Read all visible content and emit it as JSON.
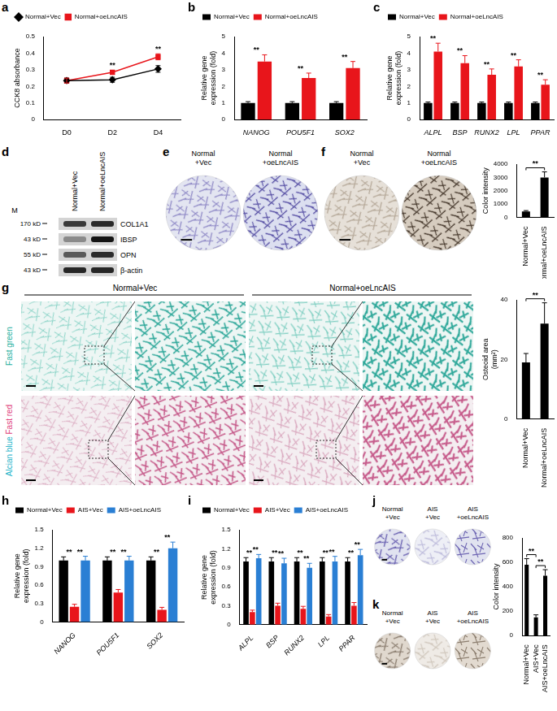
{
  "chart_data": [
    {
      "panel": "a",
      "type": "line",
      "categories": [
        "D0",
        "D2",
        "D4"
      ],
      "y_label": "CCK8 absorbance",
      "ylim": [
        0,
        0.5
      ],
      "yticks": [
        0,
        0.1,
        0.2,
        0.3,
        0.4,
        0.5
      ],
      "grid": false,
      "legend": "top",
      "series": [
        {
          "name": "Normal+Vec",
          "color": "#000000",
          "marker": "diamond",
          "values": [
            0.235,
            0.24,
            0.305
          ],
          "errors": [
            0.015,
            0.015,
            0.02
          ]
        },
        {
          "name": "Normal+oeLncAIS",
          "color": "#e8151b",
          "marker": "square",
          "values": [
            0.235,
            0.285,
            0.378
          ],
          "errors": [
            0.015,
            0.012,
            0.018
          ]
        }
      ],
      "annotations": [
        {
          "text": "**",
          "categories": [
            "D2"
          ]
        },
        {
          "text": "**",
          "categories": [
            "D4"
          ]
        }
      ]
    },
    {
      "panel": "b",
      "type": "bar",
      "categories": [
        "NANOG",
        "POU5F1",
        "SOX2"
      ],
      "y_label": [
        "Relative gene",
        "expression (fold)"
      ],
      "ylim": [
        0,
        5
      ],
      "yticks": [
        0,
        1,
        2,
        3,
        4,
        5
      ],
      "grid": false,
      "legend": "top",
      "series": [
        {
          "name": "Normal+Vec",
          "color": "#000000",
          "values": [
            1,
            1,
            1
          ],
          "errors": [
            0.08,
            0.08,
            0.08
          ]
        },
        {
          "name": "Normal+oeLncAIS",
          "color": "#e8151b",
          "values": [
            3.5,
            2.5,
            3.1
          ],
          "errors": [
            0.4,
            0.3,
            0.4
          ]
        }
      ],
      "annotations": [
        {
          "text": "**",
          "categories": [
            "NANOG"
          ]
        },
        {
          "text": "**",
          "categories": [
            "POU5F1"
          ]
        },
        {
          "text": "**",
          "categories": [
            "SOX2"
          ]
        }
      ]
    },
    {
      "panel": "c",
      "type": "bar",
      "categories": [
        "ALPL",
        "BSP",
        "RUNX2",
        "LPL",
        "PPAR"
      ],
      "y_label": [
        "Relative gene",
        "expression (fold)"
      ],
      "ylim": [
        0,
        5
      ],
      "yticks": [
        0,
        1,
        2,
        3,
        4,
        5
      ],
      "grid": false,
      "legend": "top",
      "series": [
        {
          "name": "Normal+Vec",
          "color": "#000000",
          "values": [
            1,
            1,
            1,
            1,
            1
          ],
          "errors": [
            0.06,
            0.06,
            0.06,
            0.06,
            0.06
          ]
        },
        {
          "name": "Normal+oeLncAIS",
          "color": "#e8151b",
          "values": [
            4.1,
            3.4,
            2.7,
            3.2,
            2.1
          ],
          "errors": [
            0.5,
            0.45,
            0.35,
            0.4,
            0.3
          ]
        }
      ],
      "annotations": [
        {
          "text": "**",
          "categories": [
            "ALPL"
          ]
        },
        {
          "text": "**",
          "categories": [
            "BSP"
          ]
        },
        {
          "text": "**",
          "categories": [
            "RUNX2"
          ]
        },
        {
          "text": "**",
          "categories": [
            "LPL"
          ]
        },
        {
          "text": "**",
          "categories": [
            "PPAR"
          ]
        }
      ]
    },
    {
      "panel": "f",
      "type": "bar",
      "categories": [
        "Normal+Vec",
        "Normal+oeLncAIS"
      ],
      "values": [
        450,
        3000
      ],
      "errors": [
        60,
        420
      ],
      "color": "#000000",
      "y_label": "Color intensity",
      "ylim": [
        0,
        4000
      ],
      "yticks": [
        0,
        1000,
        2000,
        3000,
        4000
      ],
      "grid": false,
      "annotations": [
        {
          "text": "**",
          "categories": [
            "Normal+Vec",
            "Normal+oeLncAIS"
          ]
        }
      ]
    },
    {
      "panel": "g",
      "type": "bar",
      "categories": [
        "Normal+Vec",
        "Normal+oeLncAIS"
      ],
      "values": [
        19,
        32
      ],
      "errors": [
        3,
        7
      ],
      "color": "#000000",
      "y_label": [
        "Osteoid area",
        "(mm²)"
      ],
      "ylim": [
        0,
        40
      ],
      "yticks": [
        0,
        20,
        40
      ],
      "grid": false,
      "annotations": [
        {
          "text": "**",
          "categories": [
            "Normal+Vec",
            "Normal+oeLncAIS"
          ]
        }
      ]
    },
    {
      "panel": "h",
      "type": "bar",
      "categories": [
        "NANOG",
        "POU5F1",
        "SOX2"
      ],
      "y_label": [
        "Relative gene",
        "expression (fold)"
      ],
      "ylim": [
        0,
        1.5
      ],
      "yticks": [
        0,
        0.3,
        0.6,
        0.9,
        1.2,
        1.5
      ],
      "grid": false,
      "legend": "top",
      "series": [
        {
          "name": "Normal+Vec",
          "color": "#000000",
          "values": [
            1,
            1,
            1
          ],
          "errors": [
            0.06,
            0.06,
            0.06
          ]
        },
        {
          "name": "AIS+Vec",
          "color": "#e8151b",
          "values": [
            0.25,
            0.48,
            0.2
          ],
          "errors": [
            0.04,
            0.05,
            0.04
          ]
        },
        {
          "name": "AIS+oeLncAIS",
          "color": "#2a7fd4",
          "values": [
            1.0,
            1.0,
            1.2
          ],
          "errors": [
            0.07,
            0.07,
            0.1
          ]
        }
      ],
      "annotations": [
        {
          "text": "**",
          "categories": [
            "NANOG"
          ],
          "series": [
            "Normal+Vec",
            "AIS+Vec"
          ]
        },
        {
          "text": "**",
          "categories": [
            "NANOG"
          ],
          "series": [
            "AIS+Vec",
            "AIS+oeLncAIS"
          ]
        },
        {
          "text": "**",
          "categories": [
            "POU5F1"
          ],
          "series": [
            "Normal+Vec",
            "AIS+Vec"
          ]
        },
        {
          "text": "**",
          "categories": [
            "POU5F1"
          ],
          "series": [
            "AIS+Vec",
            "AIS+oeLncAIS"
          ]
        },
        {
          "text": "**",
          "categories": [
            "SOX2"
          ],
          "series": [
            "Normal+Vec",
            "AIS+Vec"
          ]
        },
        {
          "text": "**",
          "categories": [
            "SOX2"
          ],
          "series": [
            "AIS+Vec",
            "AIS+oeLncAIS"
          ]
        }
      ]
    },
    {
      "panel": "i",
      "type": "bar",
      "categories": [
        "ALPL",
        "BSP",
        "RUNX2",
        "LPL",
        "PPAR"
      ],
      "y_label": [
        "Relative gene",
        "expression (fold)"
      ],
      "ylim": [
        0,
        1.5
      ],
      "yticks": [
        0,
        0.3,
        0.6,
        0.9,
        1.2,
        1.5
      ],
      "grid": false,
      "legend": "top",
      "series": [
        {
          "name": "Normal+Vec",
          "color": "#000000",
          "values": [
            1,
            1,
            1,
            1,
            1
          ],
          "errors": [
            0.06,
            0.06,
            0.06,
            0.06,
            0.06
          ]
        },
        {
          "name": "AIS+Vec",
          "color": "#e8151b",
          "values": [
            0.2,
            0.3,
            0.25,
            0.13,
            0.3
          ],
          "errors": [
            0.03,
            0.04,
            0.04,
            0.03,
            0.05
          ]
        },
        {
          "name": "AIS+oeLncAIS",
          "color": "#2a7fd4",
          "values": [
            1.05,
            0.97,
            0.9,
            1.0,
            1.1
          ],
          "errors": [
            0.06,
            0.08,
            0.07,
            0.08,
            0.09
          ]
        }
      ],
      "annotations": [
        {
          "text": "**",
          "categories": [
            "ALPL"
          ],
          "series": [
            "Normal+Vec",
            "AIS+Vec"
          ]
        },
        {
          "text": "**",
          "categories": [
            "ALPL"
          ],
          "series": [
            "AIS+Vec",
            "AIS+oeLncAIS"
          ]
        },
        {
          "text": "**",
          "categories": [
            "BSP"
          ],
          "series": [
            "Normal+Vec",
            "AIS+Vec"
          ]
        },
        {
          "text": "**",
          "categories": [
            "BSP"
          ],
          "series": [
            "AIS+Vec",
            "AIS+oeLncAIS"
          ]
        },
        {
          "text": "**",
          "categories": [
            "RUNX2"
          ],
          "series": [
            "Normal+Vec",
            "AIS+Vec"
          ]
        },
        {
          "text": "**",
          "categories": [
            "RUNX2"
          ],
          "series": [
            "AIS+Vec",
            "AIS+oeLncAIS"
          ]
        },
        {
          "text": "**",
          "categories": [
            "LPL"
          ],
          "series": [
            "Normal+Vec",
            "AIS+Vec"
          ]
        },
        {
          "text": "**",
          "categories": [
            "LPL"
          ],
          "series": [
            "AIS+Vec",
            "AIS+oeLncAIS"
          ]
        },
        {
          "text": "**",
          "categories": [
            "PPAR"
          ],
          "series": [
            "Normal+Vec",
            "AIS+Vec"
          ]
        },
        {
          "text": "**",
          "categories": [
            "PPAR"
          ],
          "series": [
            "AIS+Vec",
            "AIS+oeLncAIS"
          ]
        }
      ]
    },
    {
      "panel": "k",
      "type": "bar",
      "categories": [
        "Normal+Vec",
        "AIS+Vec",
        "AIS+oeLncAIS"
      ],
      "values": [
        580,
        150,
        490
      ],
      "errors": [
        50,
        20,
        50
      ],
      "color": "#000000",
      "y_label": "Color intensity",
      "ylim": [
        0,
        800
      ],
      "yticks": [
        0,
        200,
        400,
        600,
        800
      ],
      "grid": false,
      "annotations": [
        {
          "text": "**",
          "categories": [
            "Normal+Vec",
            "AIS+Vec"
          ]
        },
        {
          "text": "**",
          "categories": [
            "AIS+Vec",
            "AIS+oeLncAIS"
          ]
        }
      ]
    }
  ],
  "blot": {
    "panel": "d",
    "marker": "M",
    "lanes": [
      "Normal+Vec",
      "Normal+oeLncAIS"
    ],
    "rows": [
      {
        "size": "170 kD",
        "protein": "COL1A1"
      },
      {
        "size": "43 kD",
        "protein": "IBSP"
      },
      {
        "size": "55 kD",
        "protein": "OPN"
      },
      {
        "size": "43 kD",
        "protein": "β-actin"
      }
    ]
  },
  "micrographs": [
    {
      "panel": "e",
      "labels": [
        [
          "Normal",
          "+Vec"
        ],
        [
          "Normal",
          "+oeLncAIS"
        ]
      ]
    },
    {
      "panel": "f",
      "labels": [
        [
          "Normal",
          "+Vec"
        ],
        [
          "Normal",
          "+oeLncAIS"
        ]
      ]
    },
    {
      "panel": "g",
      "columns": [
        "Normal+Vec",
        "Normal+oeLncAIS"
      ],
      "rows": [
        {
          "texts": [
            "Fast green"
          ],
          "colors": [
            "#26b0a0"
          ]
        },
        {
          "texts": [
            "Alcian blue",
            "Fast red"
          ],
          "colors": [
            "#22b3c8",
            "#e0407a"
          ]
        }
      ]
    },
    {
      "panel": "j",
      "labels": [
        [
          "Normal",
          "+Vec"
        ],
        [
          "AIS",
          "+Vec"
        ],
        [
          "AIS",
          "+oeLncAIS"
        ]
      ]
    },
    {
      "panel": "k",
      "labels": [
        [
          "Normal",
          "+Vec"
        ],
        [
          "AIS",
          "+Vec"
        ],
        [
          "AIS",
          "+oeLncAIS"
        ]
      ]
    }
  ]
}
